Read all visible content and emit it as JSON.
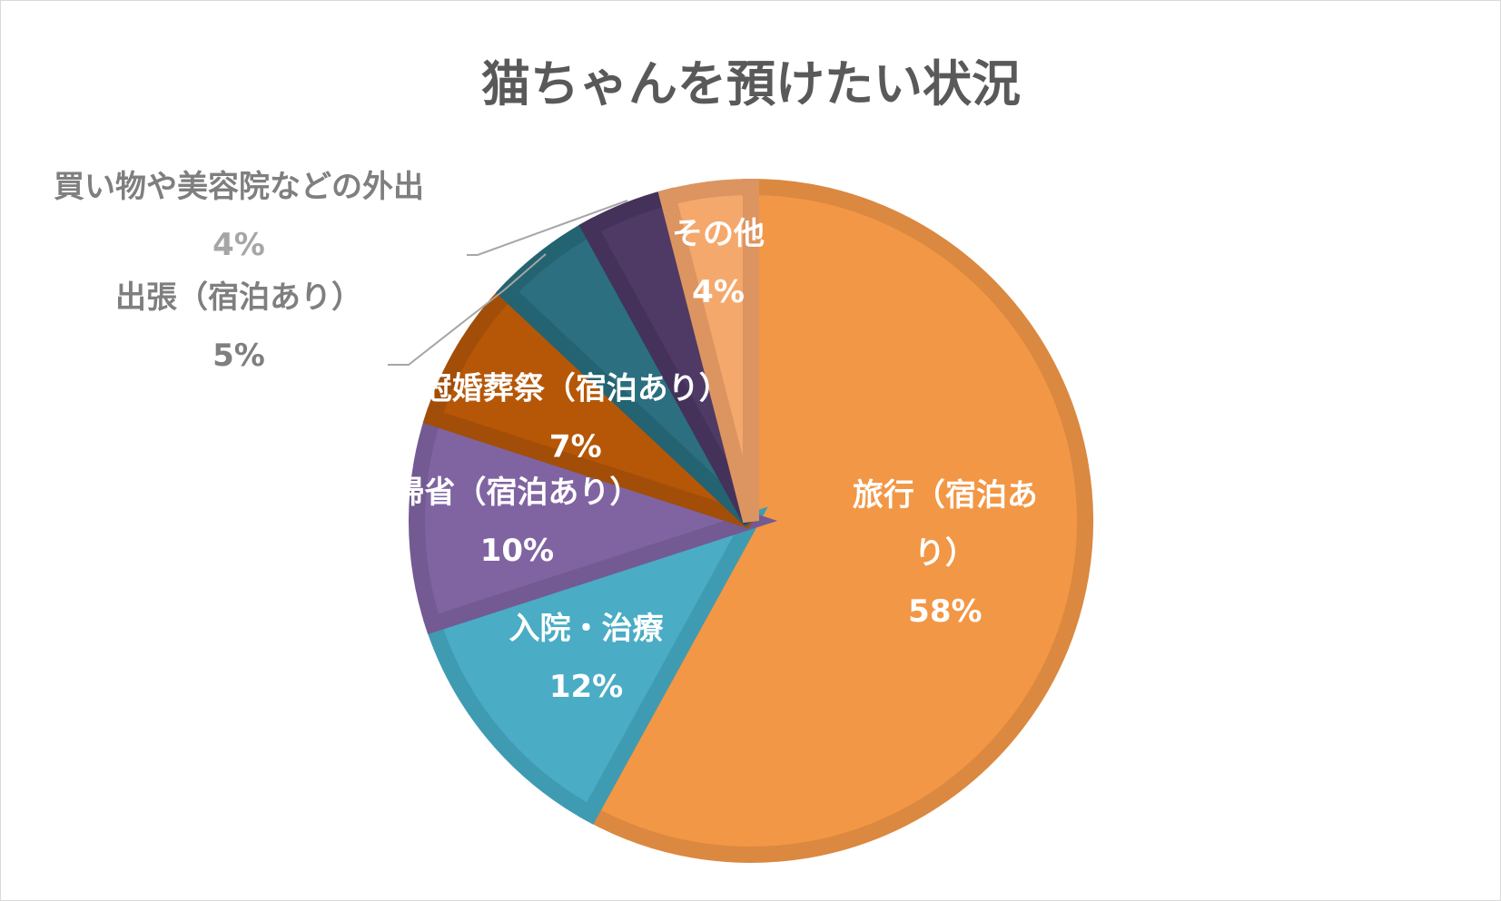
{
  "chart_data": {
    "type": "pie",
    "title": "猫ちゃんを預けたい状況",
    "start_angle_deg": 0,
    "direction": "clockwise",
    "slices": [
      {
        "name": "旅行（宿泊あり）",
        "lines": [
          "旅行（宿泊あ",
          "り）"
        ],
        "value": 58,
        "label": "58%",
        "color": "#F29745",
        "edge": "#DB8840"
      },
      {
        "name": "入院・治療",
        "lines": [
          "入院・治療"
        ],
        "value": 12,
        "label": "12%",
        "color": "#4AACC5",
        "edge": "#3F9BB2"
      },
      {
        "name": "帰省（宿泊あり）",
        "lines": [
          "帰省（宿泊あり）"
        ],
        "value": 10,
        "label": "10%",
        "color": "#8064A2",
        "edge": "#735A92"
      },
      {
        "name": "冠婚葬祭（宿泊あり）",
        "lines": [
          "冠婚葬祭（宿泊あり）"
        ],
        "value": 7,
        "label": "7%",
        "color": "#B65708",
        "edge": "#A24E08"
      },
      {
        "name": "出張（宿泊あり）",
        "lines": [
          "出張（宿泊あり）"
        ],
        "value": 5,
        "label": "5%",
        "color": "#2B6F80",
        "edge": "#236372"
      },
      {
        "name": "買い物や美容院などの外出",
        "lines": [
          "買い物や美容院などの外出"
        ],
        "value": 4,
        "label": "4%",
        "color": "#4F3A65",
        "edge": "#44325A"
      },
      {
        "name": "その他",
        "lines": [
          "その他"
        ],
        "value": 4,
        "label": "4%",
        "color": "#F5A86B",
        "edge": "#DC9560"
      }
    ]
  }
}
